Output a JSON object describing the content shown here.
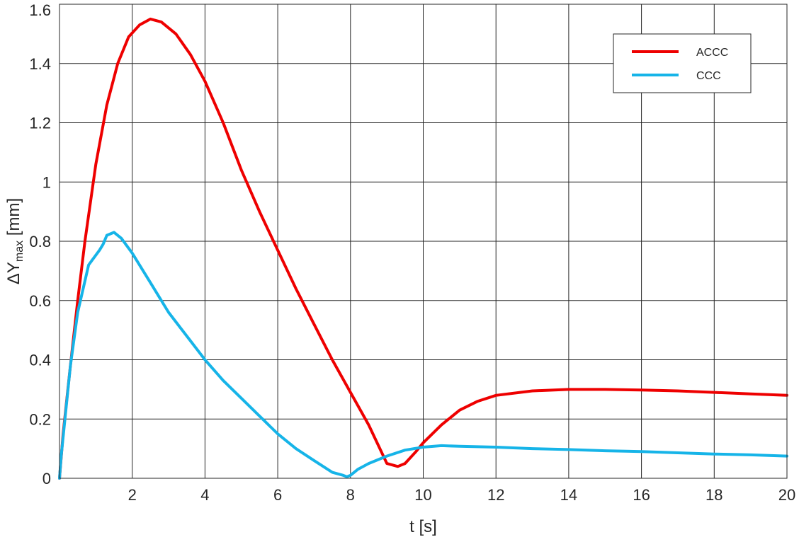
{
  "chart_data": {
    "type": "line",
    "title": "",
    "xlabel": "t [s]",
    "ylabel_main": "ΔY",
    "ylabel_sub": "max",
    "ylabel_unit": " [mm]",
    "xlim": [
      0,
      20
    ],
    "ylim": [
      0,
      1.6
    ],
    "xticks": [
      2,
      4,
      6,
      8,
      10,
      12,
      14,
      16,
      18,
      20
    ],
    "xtick_labels": [
      "2",
      "4",
      "6",
      "8",
      "10",
      "12",
      "14",
      "16",
      "18",
      "20"
    ],
    "yticks": [
      0,
      0.2,
      0.4,
      0.6,
      0.8,
      1,
      1.2,
      1.4,
      1.6
    ],
    "ytick_labels": [
      "0",
      "0.2",
      "0.4",
      "0.6",
      "0.8",
      "1",
      "1.2",
      "1.4",
      "1.6"
    ],
    "grid": true,
    "legend_position": "top-right",
    "series": [
      {
        "name": "ACCC",
        "color": "#ee0000",
        "x": [
          0,
          0.1,
          0.3,
          0.5,
          0.7,
          1.0,
          1.3,
          1.6,
          1.9,
          2.2,
          2.5,
          2.8,
          3.2,
          3.6,
          4.0,
          4.5,
          5.0,
          5.5,
          6.0,
          6.5,
          7.0,
          7.5,
          8.0,
          8.5,
          9.0,
          9.3,
          9.5,
          9.8,
          10.0,
          10.5,
          11.0,
          11.5,
          12.0,
          13.0,
          14.0,
          15.0,
          16.0,
          17.0,
          18.0,
          19.0,
          20.0
        ],
        "y": [
          0,
          0.15,
          0.38,
          0.6,
          0.8,
          1.06,
          1.26,
          1.4,
          1.49,
          1.53,
          1.55,
          1.54,
          1.5,
          1.43,
          1.34,
          1.2,
          1.04,
          0.9,
          0.77,
          0.64,
          0.52,
          0.4,
          0.29,
          0.18,
          0.05,
          0.04,
          0.05,
          0.09,
          0.12,
          0.18,
          0.23,
          0.26,
          0.28,
          0.295,
          0.3,
          0.3,
          0.298,
          0.295,
          0.29,
          0.285,
          0.28
        ]
      },
      {
        "name": "CCC",
        "color": "#16b4e8",
        "x": [
          0,
          0.05,
          0.15,
          0.3,
          0.5,
          0.8,
          1.1,
          1.2,
          1.3,
          1.5,
          1.7,
          2.0,
          2.5,
          3.0,
          3.5,
          4.0,
          4.5,
          5.0,
          5.5,
          6.0,
          6.5,
          7.0,
          7.5,
          7.8,
          7.9,
          8.0,
          8.2,
          8.5,
          9.0,
          9.5,
          10.0,
          10.5,
          11.0,
          12.0,
          13.0,
          14.0,
          15.0,
          16.0,
          17.0,
          18.0,
          19.0,
          20.0
        ],
        "y": [
          0,
          0.08,
          0.2,
          0.38,
          0.56,
          0.72,
          0.77,
          0.79,
          0.82,
          0.83,
          0.81,
          0.76,
          0.66,
          0.56,
          0.48,
          0.4,
          0.33,
          0.27,
          0.21,
          0.15,
          0.1,
          0.06,
          0.02,
          0.01,
          0.005,
          0.01,
          0.03,
          0.05,
          0.075,
          0.095,
          0.105,
          0.11,
          0.108,
          0.105,
          0.1,
          0.097,
          0.093,
          0.09,
          0.086,
          0.082,
          0.079,
          0.075
        ]
      }
    ]
  }
}
